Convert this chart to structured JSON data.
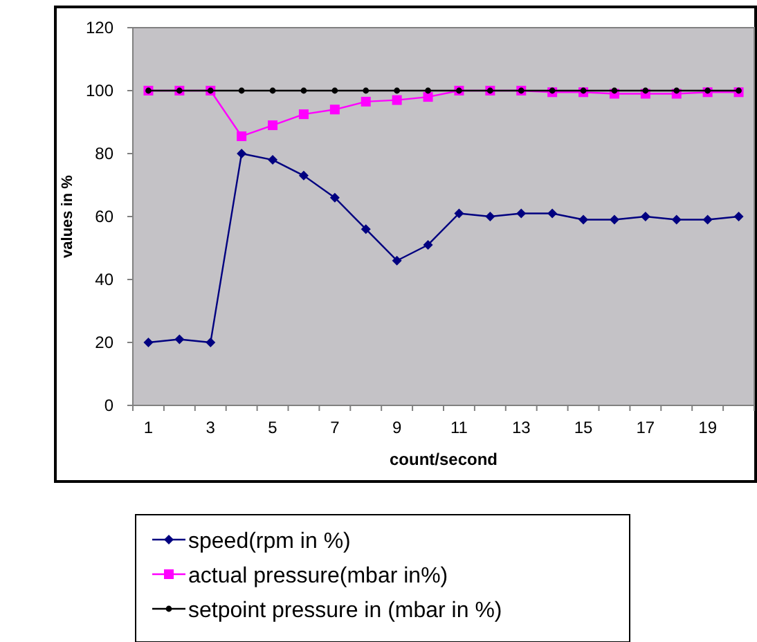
{
  "chart_data": {
    "type": "line",
    "xlabel": "count/second",
    "ylabel": "values in %",
    "x": [
      1,
      2,
      3,
      4,
      5,
      6,
      7,
      8,
      9,
      10,
      11,
      12,
      13,
      14,
      15,
      16,
      17,
      18,
      19,
      20
    ],
    "xlim": [
      0.5,
      20.5
    ],
    "xticks": [
      1,
      3,
      5,
      7,
      9,
      11,
      13,
      15,
      17,
      19,
      {
        "value": 0.5,
        "label": null
      },
      {
        "value": 1.5,
        "label": null
      },
      {
        "value": 2.5,
        "label": null
      },
      {
        "value": 3.5,
        "label": null
      },
      {
        "value": 4.5,
        "label": null
      },
      {
        "value": 5.5,
        "label": null
      },
      {
        "value": 6.5,
        "label": null
      },
      {
        "value": 7.5,
        "label": null
      },
      {
        "value": 8.5,
        "label": null
      },
      {
        "value": 9.5,
        "label": null
      },
      {
        "value": 10.5,
        "label": null
      },
      {
        "value": 11.5,
        "label": null
      },
      {
        "value": 12.5,
        "label": null
      },
      {
        "value": 13.5,
        "label": null
      },
      {
        "value": 14.5,
        "label": null
      },
      {
        "value": 15.5,
        "label": null
      },
      {
        "value": 16.5,
        "label": null
      },
      {
        "value": 17.5,
        "label": null
      },
      {
        "value": 18.5,
        "label": null
      },
      {
        "value": 19.5,
        "label": null
      },
      {
        "value": 20.5,
        "label": null
      }
    ],
    "series": [
      {
        "name": "speed(rpm in %)",
        "color": "#000080",
        "marker": "diamond",
        "values": [
          20,
          21,
          20,
          80,
          78,
          73,
          66,
          56,
          46,
          51,
          61,
          60,
          61,
          61,
          59,
          59,
          60,
          59,
          59,
          60
        ]
      },
      {
        "name": "actual pressure(mbar in%)",
        "color": "#ff00ff",
        "marker": "square",
        "values": [
          100,
          100,
          100,
          85.5,
          89,
          92.5,
          94,
          96.5,
          97,
          98,
          100,
          100,
          100,
          99.5,
          99.5,
          99,
          99,
          99,
          99.5,
          99.5
        ]
      },
      {
        "name": "setpoint pressure in (mbar in %)",
        "color": "#000000",
        "marker": "circle",
        "values": [
          100,
          100,
          100,
          100,
          100,
          100,
          100,
          100,
          100,
          100,
          100,
          100,
          100,
          100,
          100,
          100,
          100,
          100,
          100,
          100
        ]
      }
    ],
    "ylim": [
      0,
      120
    ],
    "yticks": [
      0,
      20,
      40,
      60,
      80,
      100,
      120
    ],
    "grid": false,
    "legend": "bottom"
  }
}
